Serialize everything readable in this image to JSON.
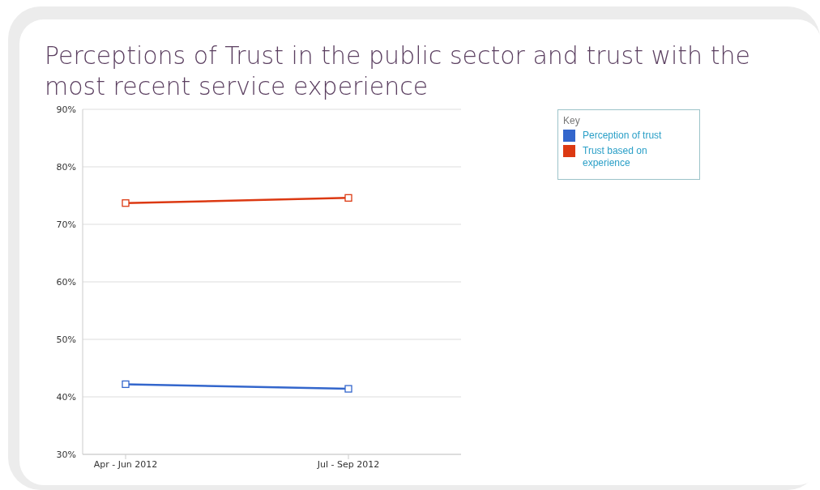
{
  "chart_data": {
    "type": "line",
    "title": "Perceptions of Trust in the public sector and trust with the most recent service experience",
    "categories": [
      "Apr - Jun 2012",
      "Jul - Sep 2012"
    ],
    "series": [
      {
        "name": "Perception of trust",
        "color": "#3366cc",
        "values": [
          42.2,
          41.4
        ]
      },
      {
        "name": "Trust based on experience",
        "color": "#dc3912",
        "values": [
          73.7,
          74.6
        ]
      }
    ],
    "ylim": [
      30,
      90
    ],
    "yticks": [
      {
        "value": 30,
        "label": "30%"
      },
      {
        "value": 40,
        "label": "40%"
      },
      {
        "value": 50,
        "label": "50%"
      },
      {
        "value": 60,
        "label": "60%"
      },
      {
        "value": 70,
        "label": "70%"
      },
      {
        "value": 80,
        "label": "80%"
      },
      {
        "value": 90,
        "label": "90%"
      }
    ],
    "grid": "y",
    "legend": "right",
    "legend_title": "Key",
    "marker": "square",
    "line_style": "solid"
  }
}
